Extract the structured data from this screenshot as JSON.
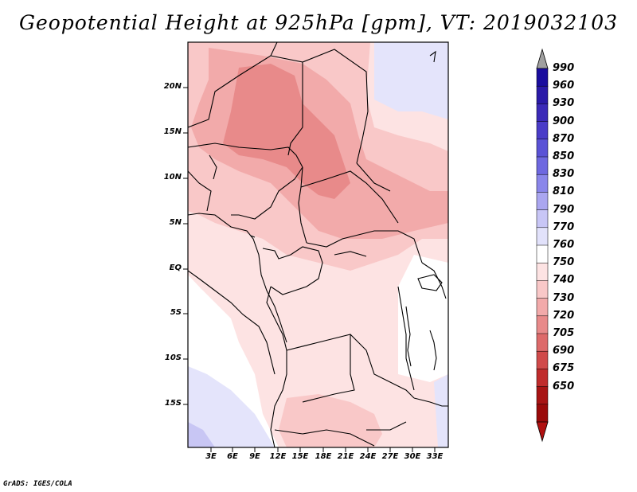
{
  "title": "Geopotential Height at 925hPa [gpm], VT: 2019032103",
  "credit": "GrADS: IGES/COLA",
  "map": {
    "lat_labels": [
      "20N",
      "15N",
      "10N",
      "5N",
      "EQ",
      "5S",
      "10S",
      "15S"
    ],
    "lon_labels": [
      "3E",
      "6E",
      "9E",
      "12E",
      "15E",
      "18E",
      "21E",
      "24E",
      "27E",
      "30E",
      "33E"
    ],
    "lon_range": [
      0,
      35
    ],
    "lat_range": [
      -20,
      24
    ]
  },
  "colorbar": {
    "levels": [
      "990",
      "960",
      "930",
      "900",
      "870",
      "850",
      "830",
      "810",
      "790",
      "770",
      "760",
      "750",
      "740",
      "730",
      "720",
      "705",
      "690",
      "675",
      "650"
    ],
    "colors": [
      "#1a0d9e",
      "#2a1aa8",
      "#3b2ab8",
      "#4a3cc8",
      "#5a52d6",
      "#6e68e0",
      "#8a86ea",
      "#aaa6f0",
      "#c8c6f6",
      "#e2e2fb",
      "#ffffff",
      "#fde3e3",
      "#f9c8c8",
      "#f2aaaa",
      "#e88a8a",
      "#dd6a6a",
      "#d04a4a",
      "#c02c2c",
      "#a81414",
      "#9a0a0a"
    ],
    "top_arrow_color": "#a0a0a0",
    "bottom_arrow_color": "#b01010"
  },
  "field_colors": {
    "white": "#ffffff",
    "pale_blue": "#e4e4fb",
    "light_blue": "#c8c6f4",
    "lightest_pink": "#fde3e3",
    "light_pink": "#f9c8c8",
    "pink": "#f2aaaa",
    "mid_red": "#e88a8a"
  }
}
